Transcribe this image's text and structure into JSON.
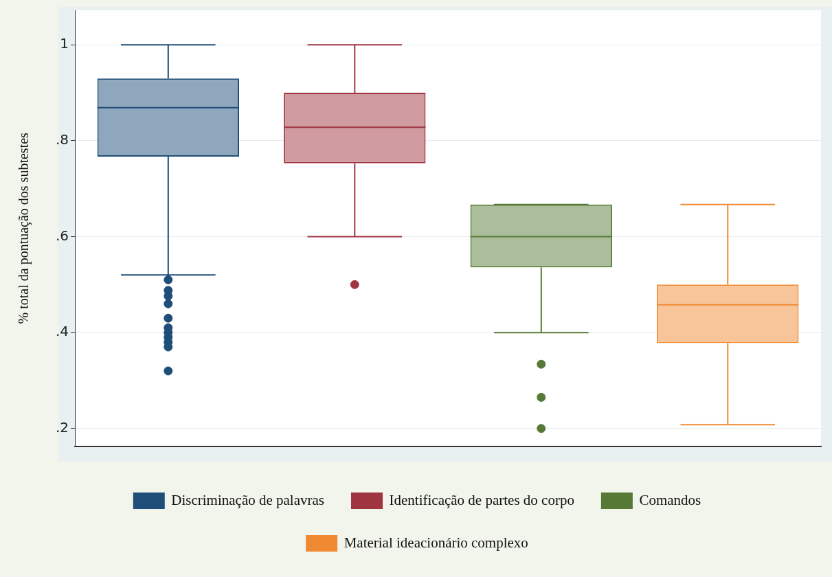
{
  "chart_data": {
    "type": "box",
    "ylabel": "% total da pontuação dos subtestes",
    "categories": [
      null,
      null,
      null,
      null
    ],
    "ylim": [
      0.163,
      1.072
    ],
    "yticks": [
      {
        "value": 0.2,
        "label": ".2"
      },
      {
        "value": 0.4,
        "label": ".4"
      },
      {
        "value": 0.6,
        "label": ".6"
      },
      {
        "value": 0.8,
        "label": ".8"
      },
      {
        "value": 1,
        "label": "1"
      }
    ],
    "grid": "y",
    "legend": "bottom",
    "marker": "circle",
    "series": [
      {
        "name": "Discriminação de palavras",
        "color": "#1f4e79",
        "boxes": [
          {
            "low": 0.52,
            "q1": 0.767,
            "median": 0.869,
            "q3": 0.93,
            "high": 1,
            "outliers": [
              0.51,
              0.488,
              0.476,
              0.46,
              0.43,
              0.41,
              0.4,
              0.39,
              0.38,
              0.37,
              0.32
            ]
          },
          null,
          null,
          null
        ]
      },
      {
        "name": "Identificação de partes do corpo",
        "color": "#9e3541",
        "boxes": [
          null,
          {
            "low": 0.6,
            "q1": 0.753,
            "median": 0.828,
            "q3": 0.9,
            "high": 1,
            "outliers": [
              0.5
            ]
          },
          null,
          null
        ]
      },
      {
        "name": "Comandos",
        "color": "#567a36",
        "boxes": [
          null,
          null,
          {
            "low": 0.4,
            "q1": 0.536,
            "median": 0.6,
            "q3": 0.667,
            "high": 0.667,
            "outliers": [
              0.334,
              0.265,
              0.2
            ]
          },
          null
        ]
      },
      {
        "name": "Material ideacionário complexo",
        "color": "#ef8a33",
        "boxes": [
          null,
          null,
          null,
          {
            "low": 0.208,
            "q1": 0.378,
            "median": 0.458,
            "q3": 0.5,
            "high": 0.667
          }
        ]
      }
    ]
  }
}
